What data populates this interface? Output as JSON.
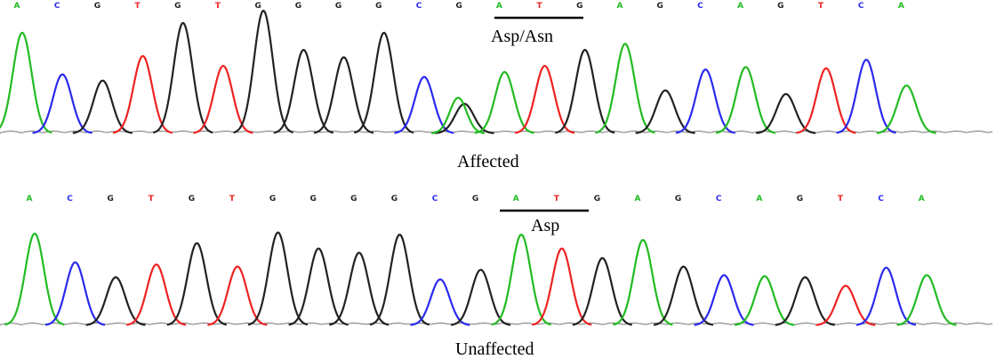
{
  "colors": {
    "A": "#22bb22",
    "C": "#2a2aee",
    "G": "#222222",
    "T": "#ee2222"
  },
  "panels": [
    {
      "caption": "Affected",
      "annotation": "Asp/Asn",
      "sequence": [
        "A",
        "C",
        "G",
        "T",
        "G",
        "T",
        "G",
        "G",
        "G",
        "G",
        "C",
        "G",
        "A",
        "T",
        "G",
        "A",
        "G",
        "C",
        "A",
        "G",
        "T",
        "C",
        "A"
      ],
      "peaks": [
        {
          "base": "A",
          "height": 0.82
        },
        {
          "base": "C",
          "height": 0.48
        },
        {
          "base": "G",
          "height": 0.43
        },
        {
          "base": "T",
          "height": 0.63
        },
        {
          "base": "G",
          "height": 0.9
        },
        {
          "base": "T",
          "height": 0.55
        },
        {
          "base": "G",
          "height": 1.0
        },
        {
          "base": "G",
          "height": 0.68
        },
        {
          "base": "G",
          "height": 0.62
        },
        {
          "base": "G",
          "height": 0.82
        },
        {
          "base": "C",
          "height": 0.46
        },
        {
          "base": "G",
          "height": 0.24,
          "secondary": {
            "base": "A",
            "height": 0.29
          }
        },
        {
          "base": "A",
          "height": 0.5
        },
        {
          "base": "T",
          "height": 0.55
        },
        {
          "base": "G",
          "height": 0.68
        },
        {
          "base": "A",
          "height": 0.73
        },
        {
          "base": "G",
          "height": 0.35
        },
        {
          "base": "C",
          "height": 0.52
        },
        {
          "base": "A",
          "height": 0.54
        },
        {
          "base": "G",
          "height": 0.32
        },
        {
          "base": "T",
          "height": 0.53
        },
        {
          "base": "C",
          "height": 0.6
        },
        {
          "base": "A",
          "height": 0.39
        }
      ]
    },
    {
      "caption": "Unaffected",
      "annotation": "Asp",
      "sequence": [
        "A",
        "C",
        "G",
        "T",
        "G",
        "T",
        "G",
        "G",
        "G",
        "G",
        "C",
        "G",
        "A",
        "T",
        "G",
        "A",
        "G",
        "C",
        "A",
        "G",
        "T",
        "C",
        "A"
      ],
      "peaks": [
        {
          "base": "A",
          "height": 0.86
        },
        {
          "base": "C",
          "height": 0.59
        },
        {
          "base": "G",
          "height": 0.45
        },
        {
          "base": "T",
          "height": 0.57
        },
        {
          "base": "G",
          "height": 0.77
        },
        {
          "base": "T",
          "height": 0.55
        },
        {
          "base": "G",
          "height": 0.87
        },
        {
          "base": "G",
          "height": 0.72
        },
        {
          "base": "G",
          "height": 0.68
        },
        {
          "base": "G",
          "height": 0.85
        },
        {
          "base": "C",
          "height": 0.43
        },
        {
          "base": "G",
          "height": 0.52
        },
        {
          "base": "A",
          "height": 0.85
        },
        {
          "base": "T",
          "height": 0.72
        },
        {
          "base": "G",
          "height": 0.63
        },
        {
          "base": "A",
          "height": 0.8
        },
        {
          "base": "G",
          "height": 0.55
        },
        {
          "base": "C",
          "height": 0.47
        },
        {
          "base": "A",
          "height": 0.46
        },
        {
          "base": "G",
          "height": 0.45
        },
        {
          "base": "T",
          "height": 0.37
        },
        {
          "base": "C",
          "height": 0.54
        },
        {
          "base": "A",
          "height": 0.47
        }
      ]
    }
  ]
}
